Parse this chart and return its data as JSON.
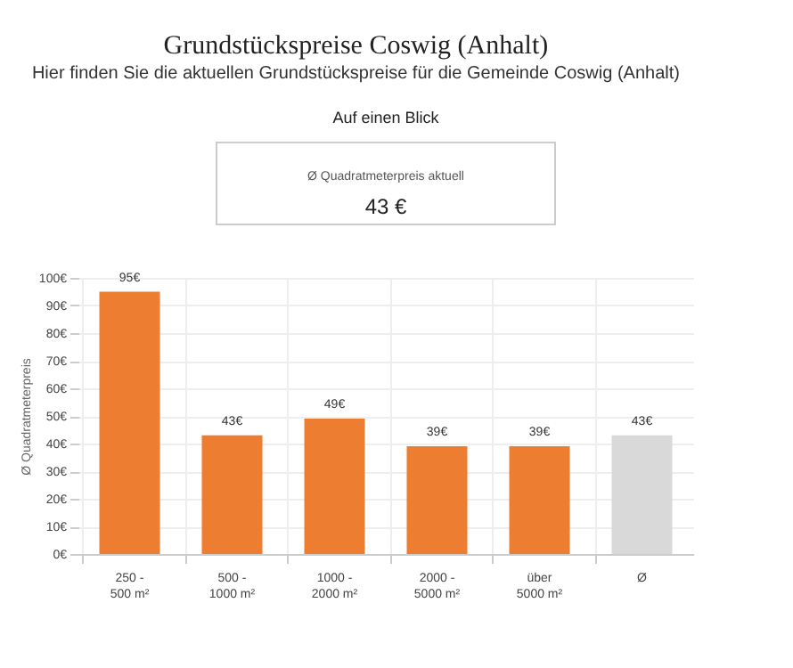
{
  "chart_data": {
    "type": "bar",
    "title": "Grundstückspreise Coswig (Anhalt)",
    "subtitle": "Hier finden Sie die aktuellen Grundstückspreise für die Gemeinde Coswig (Anhalt)",
    "annotations": [
      "Auf einen Blick",
      "Ø Quadratmeterpreis aktuell",
      "43 €"
    ],
    "ylabel": "Ø Quadratmeterpreis",
    "categories": [
      "250 - 500 m²",
      "500 - 1000 m²",
      "1000 - 2000 m²",
      "2000 - 5000 m²",
      "über 5000 m²",
      "Ø"
    ],
    "values": [
      95,
      43,
      49,
      39,
      39,
      43
    ],
    "value_labels": [
      "95€",
      "43€",
      "49€",
      "39€",
      "39€",
      "43€"
    ],
    "colors": [
      "#ed7d31",
      "#ed7d31",
      "#ed7d31",
      "#ed7d31",
      "#ed7d31",
      "#d9d9d9"
    ],
    "ylim": [
      0,
      100
    ],
    "yticks": [
      {
        "value": 0,
        "label": "0€"
      },
      {
        "value": 10,
        "label": "10€"
      },
      {
        "value": 20,
        "label": "20€"
      },
      {
        "value": 30,
        "label": "30€"
      },
      {
        "value": 40,
        "label": "40€"
      },
      {
        "value": 50,
        "label": "50€"
      },
      {
        "value": 60,
        "label": "60€"
      },
      {
        "value": 70,
        "label": "70€"
      },
      {
        "value": 80,
        "label": "80€"
      },
      {
        "value": 90,
        "label": "90€"
      },
      {
        "value": 100,
        "label": "100€"
      }
    ],
    "grid": true
  }
}
